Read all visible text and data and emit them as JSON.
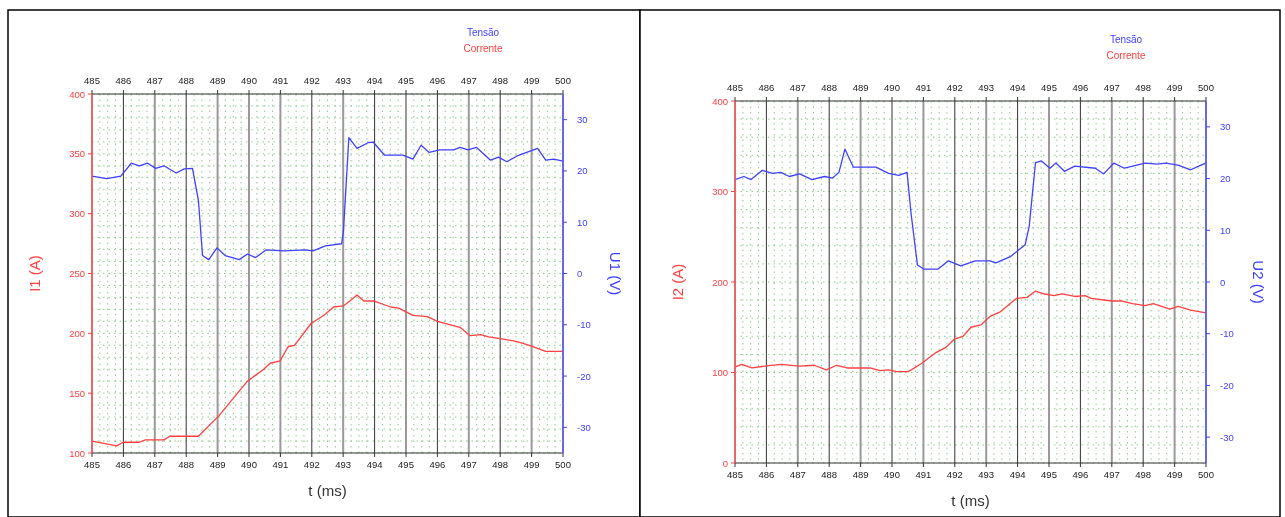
{
  "chart_data": [
    {
      "type": "line",
      "xlabel": "t (ms)",
      "ylabel": "I1 (A)",
      "y2label": "U1 (V)",
      "legend": "top right",
      "grid": true,
      "marker": "none",
      "line_style": "solid",
      "xlim": [
        485,
        500
      ],
      "xticks": [
        485,
        486,
        487,
        488,
        489,
        490,
        491,
        492,
        493,
        494,
        495,
        496,
        497,
        498,
        499,
        500
      ],
      "x2lim": [
        485,
        500
      ],
      "x2ticks": [
        485,
        486,
        487,
        488,
        489,
        490,
        491,
        492,
        493,
        494,
        495,
        496,
        497,
        498,
        499,
        500
      ],
      "ylim": [
        100,
        400
      ],
      "yticks": [
        100,
        150,
        200,
        250,
        300,
        350,
        400
      ],
      "y2lim": [
        -35,
        35
      ],
      "y2ticks": [
        -30,
        -20,
        -10,
        0,
        10,
        20,
        30
      ],
      "series": [
        {
          "name": "Tensão",
          "color": "#4040ff",
          "axis": "y2",
          "x": [
            485.0,
            485.47,
            485.92,
            486.25,
            486.51,
            486.77,
            487.03,
            487.29,
            487.68,
            487.94,
            488.2,
            488.39,
            488.52,
            488.72,
            488.98,
            489.24,
            489.69,
            489.95,
            490.21,
            490.54,
            491.12,
            491.78,
            492.04,
            492.43,
            492.95,
            493.01,
            493.18,
            493.44,
            493.79,
            493.96,
            494.31,
            494.9,
            495.22,
            495.48,
            495.74,
            496.07,
            496.52,
            496.72,
            496.98,
            497.24,
            497.69,
            497.95,
            498.21,
            498.6,
            499.19,
            499.45,
            499.71,
            500.0
          ],
          "values": [
            19.0,
            18.5,
            19.0,
            21.5,
            21.0,
            21.5,
            20.5,
            21.0,
            19.6,
            20.4,
            20.5,
            14.2,
            3.5,
            2.7,
            5.0,
            3.5,
            2.7,
            3.8,
            3.1,
            4.6,
            4.4,
            4.6,
            4.4,
            5.4,
            5.8,
            8.5,
            26.5,
            24.4,
            25.5,
            25.6,
            23.1,
            23.1,
            22.3,
            25.0,
            23.6,
            24.1,
            24.1,
            24.6,
            24.1,
            24.6,
            22.1,
            22.7,
            21.8,
            23.1,
            24.4,
            22.1,
            22.3,
            21.9
          ]
        },
        {
          "name": "Corrente",
          "color": "#ff4040",
          "axis": "y",
          "x": [
            485.0,
            485.79,
            485.99,
            486.51,
            486.7,
            487.29,
            487.48,
            488.39,
            489.04,
            489.95,
            490.47,
            490.67,
            490.99,
            491.25,
            491.45,
            491.97,
            492.43,
            492.69,
            493.01,
            493.21,
            493.44,
            493.66,
            493.99,
            494.51,
            494.77,
            495.22,
            495.68,
            496.0,
            496.72,
            497.04,
            497.37,
            497.63,
            498.15,
            498.54,
            498.93,
            499.45,
            500.0
          ],
          "values": [
            110,
            106,
            109,
            109,
            111,
            111,
            114,
            114,
            131,
            160,
            170,
            175,
            177,
            189,
            190,
            208,
            216,
            222,
            223,
            227,
            232,
            227,
            227,
            222,
            221,
            215,
            214,
            210,
            205,
            198,
            199,
            197,
            195,
            193,
            190,
            185,
            185
          ]
        }
      ]
    },
    {
      "type": "line",
      "xlabel": "t (ms)",
      "ylabel": "I2 (A)",
      "y2label": "U2 (V)",
      "legend": "top right",
      "grid": true,
      "marker": "none",
      "line_style": "solid",
      "xlim": [
        485,
        500
      ],
      "xticks": [
        485,
        486,
        487,
        488,
        489,
        490,
        491,
        492,
        493,
        494,
        495,
        496,
        497,
        498,
        499,
        500
      ],
      "x2lim": [
        485,
        500
      ],
      "x2ticks": [
        485,
        486,
        487,
        488,
        489,
        490,
        491,
        492,
        493,
        494,
        495,
        496,
        497,
        498,
        499,
        500
      ],
      "ylim": [
        0,
        400
      ],
      "yticks": [
        0,
        100,
        200,
        300,
        400
      ],
      "y2lim": [
        -35,
        35
      ],
      "y2ticks": [
        -30,
        -20,
        -10,
        0,
        10,
        20,
        30
      ],
      "series": [
        {
          "name": "Tensão",
          "color": "#4040ff",
          "axis": "y2",
          "x": [
            485.0,
            485.28,
            485.51,
            485.87,
            486.2,
            486.46,
            486.73,
            487.06,
            487.45,
            487.85,
            488.11,
            488.31,
            488.5,
            488.77,
            489.49,
            489.89,
            490.22,
            490.48,
            490.61,
            490.81,
            491.01,
            491.47,
            491.8,
            492.19,
            492.65,
            493.12,
            493.31,
            493.77,
            494.24,
            494.37,
            494.57,
            494.76,
            495.03,
            495.22,
            495.49,
            495.82,
            496.48,
            496.74,
            497.07,
            497.4,
            498.06,
            498.45,
            498.72,
            499.11,
            499.51,
            499.84,
            500.0
          ],
          "values": [
            19.8,
            20.4,
            19.8,
            21.6,
            21.0,
            21.2,
            20.4,
            20.9,
            19.8,
            20.4,
            20.1,
            21.2,
            25.7,
            22.2,
            22.2,
            21.0,
            20.6,
            21.2,
            13.1,
            3.3,
            2.5,
            2.5,
            4.1,
            3.1,
            4.1,
            4.1,
            3.7,
            4.9,
            7.2,
            10.8,
            23.1,
            23.4,
            22.0,
            23.0,
            21.4,
            22.4,
            22.0,
            20.9,
            23.0,
            22.0,
            23.0,
            22.8,
            23.0,
            22.6,
            21.7,
            22.6,
            23.0
          ]
        },
        {
          "name": "Corrente",
          "color": "#ff4040",
          "axis": "y",
          "x": [
            485.0,
            485.21,
            485.54,
            485.94,
            486.46,
            487.06,
            487.52,
            487.91,
            488.24,
            488.57,
            489.3,
            489.62,
            489.89,
            490.15,
            490.52,
            490.94,
            491.4,
            491.73,
            491.99,
            492.26,
            492.52,
            492.85,
            493.12,
            493.45,
            493.97,
            494.3,
            494.57,
            494.83,
            495.16,
            495.42,
            495.82,
            496.15,
            496.34,
            497.0,
            497.33,
            497.66,
            498.06,
            498.32,
            498.85,
            499.11,
            499.51,
            500.0
          ],
          "values": [
            106,
            109,
            105,
            107,
            109,
            107,
            108,
            103,
            108,
            105,
            105,
            102,
            103,
            101,
            101,
            110,
            122,
            128,
            137,
            140,
            150,
            153,
            162,
            167,
            182,
            183,
            190,
            187,
            185,
            187,
            184,
            185,
            182,
            179,
            179,
            176,
            174,
            176,
            170,
            173,
            169,
            166
          ]
        }
      ]
    }
  ]
}
